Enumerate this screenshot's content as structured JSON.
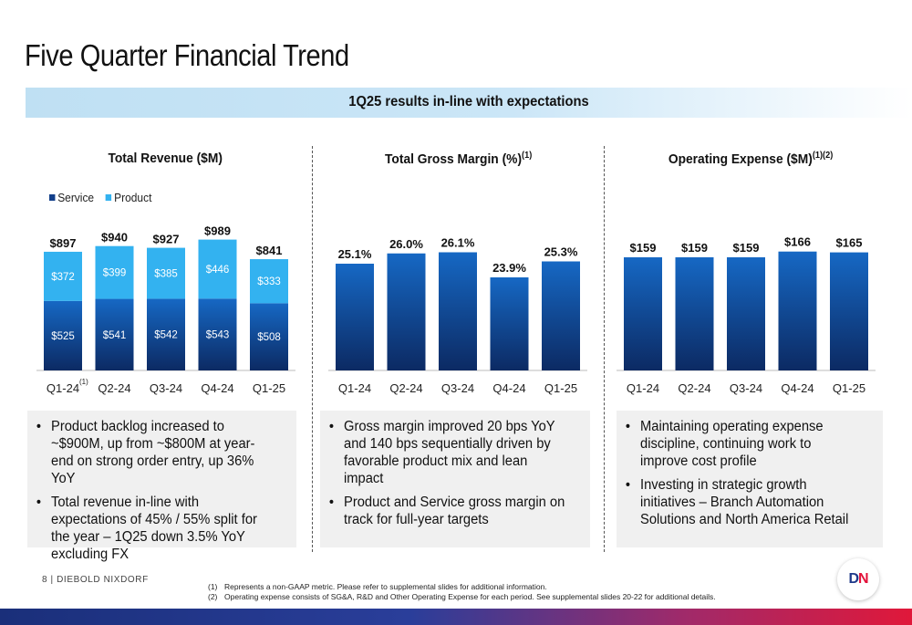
{
  "title": "Five Quarter Financial Trend",
  "banner": "1Q25 results in-line with expectations",
  "colors": {
    "service_bar_top": "#1668c4",
    "service_bar_bottom": "#0c2a63",
    "product_bar": "#33b2f0",
    "banner": "#c6e3f5"
  },
  "panels": {
    "revenue": {
      "title": "Total Revenue ($M)",
      "sup": ""
    },
    "margin": {
      "title": "Total Gross Margin (%)",
      "sup": "(1)"
    },
    "opex": {
      "title": "Operating Expense ($M)",
      "sup": "(1)(2)"
    }
  },
  "legend": {
    "service": "Service",
    "product": "Product"
  },
  "chart_data": [
    {
      "type": "bar",
      "stacked": true,
      "title": "Total Revenue ($M)",
      "categories": [
        "Q1-24",
        "Q2-24",
        "Q3-24",
        "Q4-24",
        "Q1-25"
      ],
      "category_sup": [
        "(1)",
        "",
        "",
        "",
        ""
      ],
      "series": [
        {
          "name": "Service",
          "values": [
            525,
            541,
            542,
            543,
            508
          ],
          "labels": [
            "$525",
            "$541",
            "$542",
            "$543",
            "$508"
          ]
        },
        {
          "name": "Product",
          "values": [
            372,
            399,
            385,
            446,
            333
          ],
          "labels": [
            "$372",
            "$399",
            "$385",
            "$446",
            "$333"
          ]
        }
      ],
      "totals": [
        897,
        940,
        927,
        989,
        841
      ],
      "total_labels": [
        "$897",
        "$940",
        "$927",
        "$989",
        "$841"
      ],
      "ylim": [
        0,
        1000
      ]
    },
    {
      "type": "bar",
      "title": "Total Gross Margin (%)",
      "categories": [
        "Q1-24",
        "Q2-24",
        "Q3-24",
        "Q4-24",
        "Q1-25"
      ],
      "values": [
        25.1,
        26.0,
        26.1,
        23.9,
        25.3
      ],
      "labels": [
        "25.1%",
        "26.0%",
        "26.1%",
        "23.9%",
        "25.3%"
      ],
      "ylim": [
        0,
        28
      ]
    },
    {
      "type": "bar",
      "title": "Operating Expense ($M)",
      "categories": [
        "Q1-24",
        "Q2-24",
        "Q3-24",
        "Q4-24",
        "Q1-25"
      ],
      "values": [
        159,
        159,
        159,
        166,
        165
      ],
      "labels": [
        "$159",
        "$159",
        "$159",
        "$166",
        "$165"
      ],
      "ylim": [
        0,
        185
      ]
    }
  ],
  "bullets": {
    "revenue": [
      "Product backlog increased to ~$900M, up from ~$800M at year-end on strong order entry, up 36% YoY",
      "Total revenue in-line with expectations of 45% / 55% split for the year – 1Q25 down 3.5% YoY excluding FX"
    ],
    "margin": [
      "Gross margin improved 20 bps YoY and 140 bps sequentially driven by favorable product mix and lean impact",
      "Product and Service gross margin on track for full-year targets"
    ],
    "opex": [
      "Maintaining operating expense discipline, continuing work to improve cost profile",
      "Investing in strategic growth initiatives – Branch Automation Solutions and North America Retail"
    ]
  },
  "footer": {
    "page": "8 | DIEBOLD NIXDORF",
    "notes": [
      {
        "num": "(1)",
        "text": "Represents a non-GAAP metric.  Please refer to supplemental slides for additional information."
      },
      {
        "num": "(2)",
        "text": "Operating expense consists of SG&A, R&D and Other Operating Expense for each period. See supplemental slides 20-22 for additional details."
      }
    ],
    "logo": "DN"
  }
}
